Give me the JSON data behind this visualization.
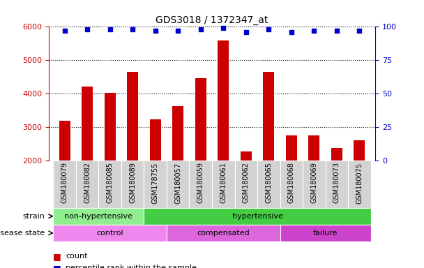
{
  "title": "GDS3018 / 1372347_at",
  "samples": [
    "GSM180079",
    "GSM180082",
    "GSM180085",
    "GSM180089",
    "GSM178755",
    "GSM180057",
    "GSM180059",
    "GSM180061",
    "GSM180062",
    "GSM180065",
    "GSM180068",
    "GSM180069",
    "GSM180073",
    "GSM180075"
  ],
  "counts": [
    3200,
    4220,
    4020,
    4660,
    3230,
    3640,
    4470,
    5590,
    2270,
    4650,
    2750,
    2760,
    2390,
    2610
  ],
  "percentile_ranks": [
    97,
    98,
    98,
    98,
    97,
    97,
    98,
    99,
    96,
    98,
    96,
    97,
    97,
    97
  ],
  "bar_color": "#cc0000",
  "dot_color": "#0000cc",
  "ylim_left": [
    2000,
    6000
  ],
  "ylim_right": [
    0,
    100
  ],
  "yticks_left": [
    2000,
    3000,
    4000,
    5000,
    6000
  ],
  "yticks_right": [
    0,
    25,
    50,
    75,
    100
  ],
  "strain_groups": [
    {
      "label": "non-hypertensive",
      "start": 0,
      "end": 4,
      "color": "#90ee90"
    },
    {
      "label": "hypertensive",
      "start": 4,
      "end": 14,
      "color": "#44cc44"
    }
  ],
  "disease_groups": [
    {
      "label": "control",
      "start": 0,
      "end": 5,
      "color": "#ee88ee"
    },
    {
      "label": "compensated",
      "start": 5,
      "end": 10,
      "color": "#dd66dd"
    },
    {
      "label": "failure",
      "start": 10,
      "end": 14,
      "color": "#cc44cc"
    }
  ],
  "bar_color_legend": "#cc0000",
  "dot_color_legend": "#0000cc",
  "left_axis_color": "#cc0000",
  "right_axis_color": "#0000cc",
  "xlabel_bg_color": "#d3d3d3",
  "title_fontsize": 10,
  "bar_width": 0.5,
  "xlim": [
    -0.7,
    13.7
  ]
}
